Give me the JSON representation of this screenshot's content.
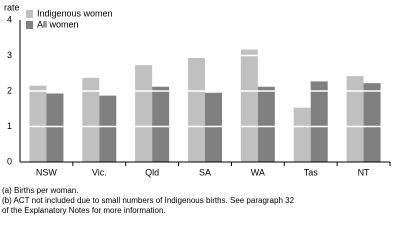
{
  "chart_data": {
    "type": "bar",
    "y_label": "rate",
    "categories": [
      "NSW",
      "Vic.",
      "Qld",
      "SA",
      "WA",
      "Tas",
      "NT"
    ],
    "series": [
      {
        "name": "Indigenous women",
        "color": "#c0c0c0",
        "values": [
          2.15,
          2.37,
          2.73,
          2.93,
          3.17,
          1.53,
          2.42
        ]
      },
      {
        "name": "All women",
        "color": "#808080",
        "values": [
          1.93,
          1.87,
          2.12,
          1.95,
          2.12,
          2.27,
          2.22
        ]
      }
    ],
    "ylim": [
      0,
      4
    ],
    "yticks": [
      0,
      1,
      2,
      3,
      4
    ],
    "grid": true,
    "grid_color": "#ffffff",
    "legend": "upper left",
    "notes": [
      "(a) Births per woman.",
      "(b) ACT not included due to small numbers of Indigenous births. See paragraph 32",
      "of the Explanatory Notes for more information."
    ]
  }
}
